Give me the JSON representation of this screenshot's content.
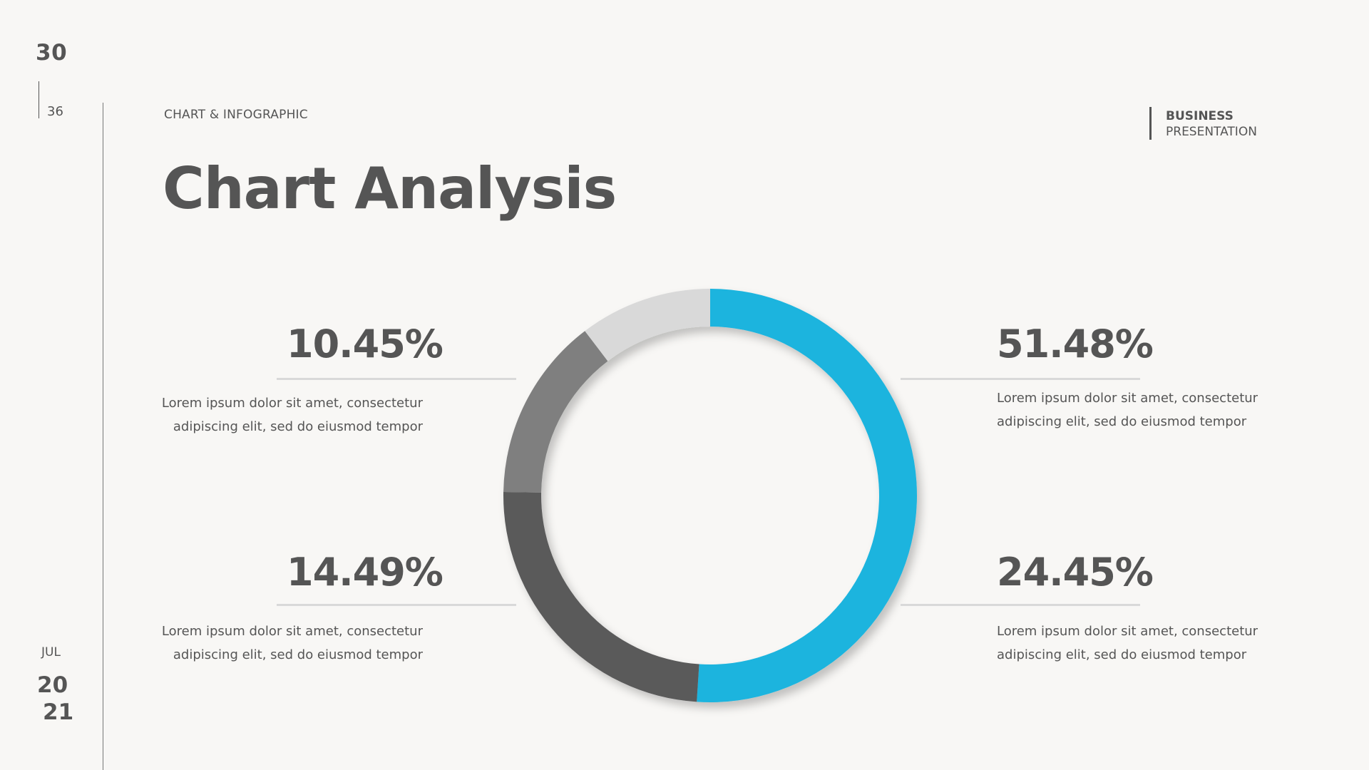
{
  "slide": {
    "page_number": "30",
    "page_total": "36",
    "section_label": "CHART & INFOGRAPHIC",
    "title": "Chart Analysis",
    "brand_line1": "BUSINESS",
    "brand_line2": "PRESENTATION",
    "month": "JUL",
    "year_part1": "20",
    "year_part2": "21"
  },
  "stats": {
    "top_left": {
      "value": "10.45%",
      "desc_line1": "Lorem ipsum dolor sit amet, consectetur",
      "desc_line2": "adipiscing elit, sed do eiusmod tempor"
    },
    "bottom_left": {
      "value": "14.49%",
      "desc_line1": "Lorem ipsum dolor sit amet, consectetur",
      "desc_line2": "adipiscing elit, sed do eiusmod tempor"
    },
    "top_right": {
      "value": "51.48%",
      "desc_line1": "Lorem ipsum dolor sit amet, consectetur",
      "desc_line2": "adipiscing elit, sed do eiusmod tempor"
    },
    "bottom_right": {
      "value": "24.45%",
      "desc_line1": "Lorem ipsum dolor sit amet, consectetur",
      "desc_line2": "adipiscing elit, sed do eiusmod tempor"
    }
  },
  "chart_data": {
    "type": "pie",
    "title": "",
    "categories": [
      "",
      "",
      "",
      ""
    ],
    "values": [
      51.48,
      24.45,
      14.49,
      10.45
    ],
    "colors": [
      "#1db4de",
      "#5a5a5a",
      "#7f7f7f",
      "#d9d9d9"
    ],
    "donut": true,
    "legend": "none"
  }
}
